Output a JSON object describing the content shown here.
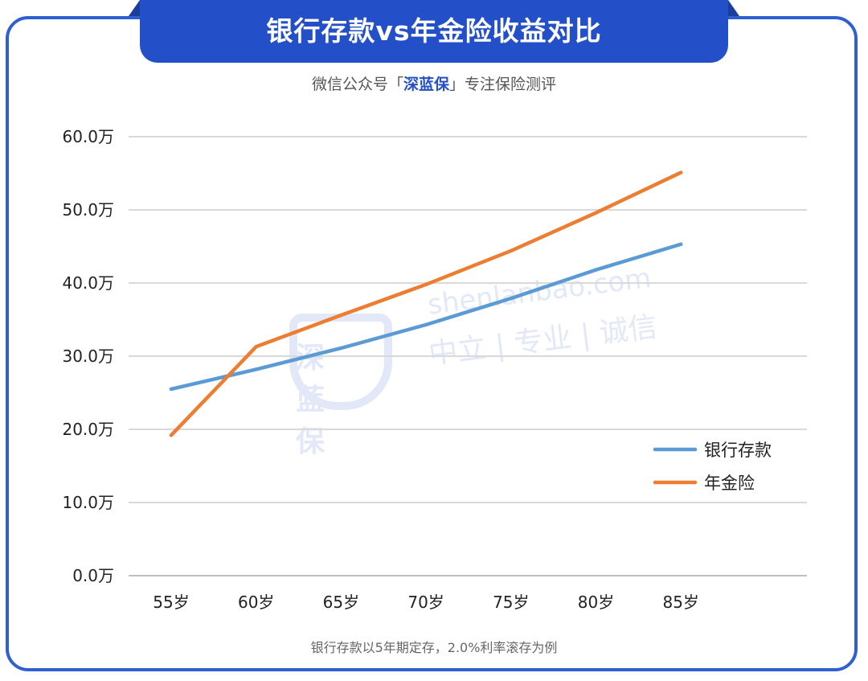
{
  "header": {
    "title": "银行存款vs年金险收益对比",
    "subtitle_prefix": "微信公众号「",
    "subtitle_brand": "深蓝保",
    "subtitle_suffix": "」专注保险测评"
  },
  "watermark": {
    "logo_text": "深蓝保",
    "domain": "shenlanbao.com",
    "slogan": "中立 | 专业 | 诚信"
  },
  "footnote": "银行存款以5年期定存，2.0%利率滚存为例",
  "chart_data": {
    "type": "line",
    "categories": [
      "55岁",
      "60岁",
      "65岁",
      "70岁",
      "75岁",
      "80岁",
      "85岁"
    ],
    "ylim": [
      0,
      60
    ],
    "yticks": [
      0,
      10,
      20,
      30,
      40,
      50,
      60
    ],
    "ytick_labels": [
      "0.0万",
      "10.0万",
      "20.0万",
      "30.0万",
      "40.0万",
      "50.0万",
      "60.0万"
    ],
    "grid": true,
    "legend_position": "right",
    "series": [
      {
        "name": "银行存款",
        "color": "#5b9bd5",
        "values": [
          25.5,
          28.2,
          31.1,
          34.3,
          37.9,
          41.8,
          45.3
        ]
      },
      {
        "name": "年金险",
        "color": "#ed7d31",
        "values": [
          19.2,
          31.3,
          35.6,
          39.8,
          44.4,
          49.6,
          55.1
        ]
      }
    ]
  }
}
